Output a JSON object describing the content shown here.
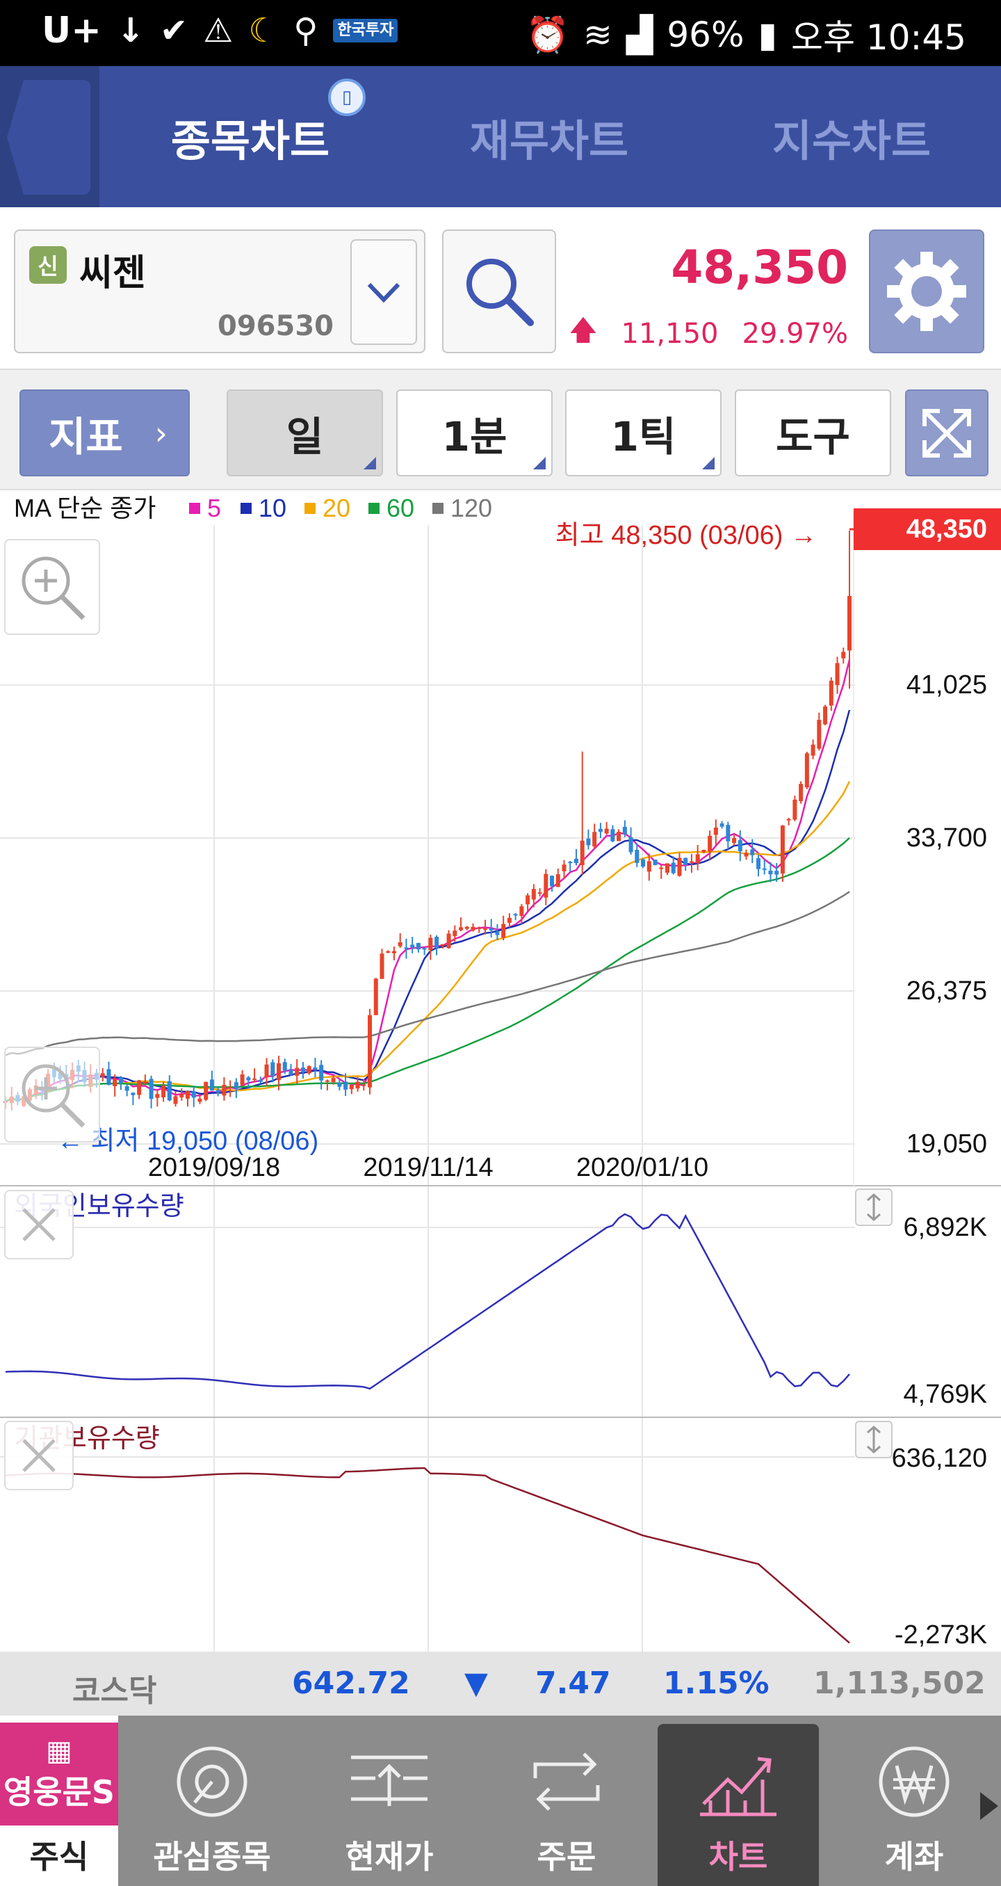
{
  "status_bar": {
    "carrier": "U+",
    "badge": "한국투자",
    "battery": "96%",
    "time": "오후 10:45"
  },
  "header": {
    "tabs": [
      {
        "label": "종목차트",
        "active": true
      },
      {
        "label": "재무차트",
        "active": false
      },
      {
        "label": "지수차트",
        "active": false
      }
    ]
  },
  "stock": {
    "badge": "신",
    "name": "씨젠",
    "code": "096530",
    "price": "48,350",
    "change": "11,150",
    "change_pct": "29.97%",
    "direction": "up"
  },
  "toolbar": {
    "indicator": "지표",
    "period_day": "일",
    "period_min": "1분",
    "period_tick": "1틱",
    "tools": "도구"
  },
  "chart": {
    "ma_title": "MA 단순 종가",
    "ma_legend": [
      {
        "label": "5",
        "color": "#e61eb4"
      },
      {
        "label": "10",
        "color": "#1b2fb0"
      },
      {
        "label": "20",
        "color": "#f2a900"
      },
      {
        "label": "60",
        "color": "#18a040"
      },
      {
        "label": "120",
        "color": "#777777"
      }
    ],
    "high_label": "최고 48,350 (03/06) →",
    "low_label": "← 최저 19,050 (08/06)",
    "current_price_tag": "48,350",
    "y_ticks": [
      "41,025",
      "33,700",
      "26,375",
      "19,050"
    ],
    "x_ticks": [
      "2019/09/18",
      "2019/11/14",
      "2020/01/10"
    ],
    "foreign_title": "외국인보유수량",
    "foreign_ticks": [
      "6,892K",
      "4,769K"
    ],
    "inst_title": "기관보유수량",
    "inst_ticks": [
      "636,120",
      "-2,273K"
    ]
  },
  "chart_data": [
    {
      "type": "candlestick",
      "title": "MA 단순 종가",
      "y_range": [
        19050,
        48350
      ],
      "ma_periods": [
        5,
        10,
        20,
        60,
        120
      ],
      "high": {
        "value": 48350,
        "date": "03/06"
      },
      "low": {
        "value": 19050,
        "date": "08/06"
      },
      "x_ticks": [
        "2019/09/18",
        "2019/11/14",
        "2020/01/10"
      ]
    },
    {
      "type": "line",
      "title": "외국인보유수량",
      "y_range": [
        "4,769K",
        "6,892K"
      ]
    },
    {
      "type": "line",
      "title": "기관보유수량",
      "y_range": [
        "-2,273K",
        "636,120"
      ]
    }
  ],
  "ticker": {
    "market": "코스닥",
    "index": "642.72",
    "direction": "▼",
    "change": "7.47",
    "change_pct": "1.15%",
    "volume": "1,113,502"
  },
  "bottom_nav": {
    "logo": "영웅문S",
    "items": [
      {
        "label": "주식",
        "active": false
      },
      {
        "label": "관심종목",
        "active": false
      },
      {
        "label": "현재가",
        "active": false
      },
      {
        "label": "주문",
        "active": false
      },
      {
        "label": "차트",
        "active": true
      },
      {
        "label": "계좌",
        "active": false
      }
    ]
  },
  "colors": {
    "header_bg": "#3a4f9e",
    "up": "#e0245e",
    "down_blue": "#1a56d8",
    "candle_up": "#e8442a",
    "candle_down": "#2e86d8"
  }
}
